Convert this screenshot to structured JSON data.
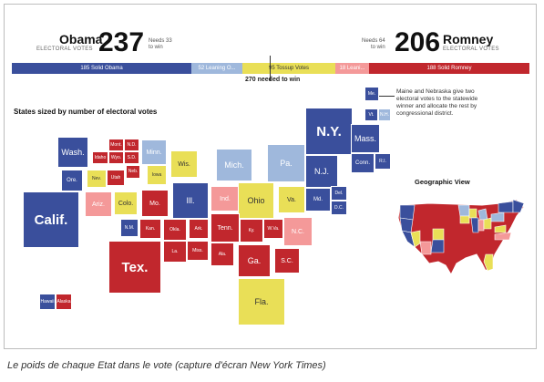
{
  "header": {
    "left": {
      "name": "Obama",
      "sub": "ELECTORAL VOTES",
      "votes": "237",
      "needs": "Needs 33",
      "needs2": "to win"
    },
    "right": {
      "name": "Romney",
      "sub": "ELECTORAL VOTES",
      "votes": "206",
      "needs": "Needs 64",
      "needs2": "to win"
    }
  },
  "bar": {
    "solid_obama": "185 Solid Obama",
    "leaning_o": "52 Leaning O...",
    "tossup": "95 Tossup Votes",
    "leaning_r": "18 Leani...",
    "solid_romney": "188 Solid Romney",
    "needed": "270 needed to win"
  },
  "section_title": "States sized by number of electoral votes",
  "note": "Maine and Nebraska give two electoral votes to the statewide winner and allocate the rest by congressional district.",
  "geo_title": "Geographic View",
  "states": {
    "me": "Me.",
    "vt": "Vt.",
    "nh": "N.H.",
    "ny": "N.Y.",
    "mass": "Mass.",
    "conn": "Conn.",
    "ri": "R.I.",
    "nj": "N.J.",
    "pa": "Pa.",
    "mich": "Mich.",
    "md": "Md.",
    "del": "Del.",
    "dc": "D.C.",
    "wash": "Wash.",
    "mont": "Mont.",
    "nd": "N.D.",
    "minn": "Minn.",
    "idaho": "Idaho",
    "wyo": "Wyo.",
    "sd": "S.D.",
    "ore": "Ore.",
    "nev": "Nev.",
    "utah": "Utah",
    "neb": "Neb.",
    "iowa": "Iowa",
    "wis": "Wis.",
    "calif": "Calif.",
    "ariz": "Ariz.",
    "colo": "Colo.",
    "mo": "Mo.",
    "ill": "Ill.",
    "ind": "Ind.",
    "ohio": "Ohio",
    "va": "Va.",
    "nm": "N.M.",
    "kan": "Kan.",
    "okla": "Okla.",
    "ark": "Ark.",
    "tenn": "Tenn.",
    "ky": "Ky.",
    "wva": "W.Va.",
    "nc": "N.C.",
    "tex": "Tex.",
    "la": "La.",
    "miss": "Miss.",
    "ala": "Ala.",
    "ga": "Ga.",
    "sc": "S.C.",
    "fla": "Fla.",
    "hawaii": "Hawaii",
    "alaska": "Alaska"
  },
  "colors": {
    "solid_obama": "#3a4f9c",
    "leaning_obama": "#9fb8dc",
    "tossup": "#e9df57",
    "leaning_romney": "#f49999",
    "solid_romney": "#c1272d"
  },
  "caption": "Le poids de chaque Etat dans le vote (capture d'écran New York Times)"
}
